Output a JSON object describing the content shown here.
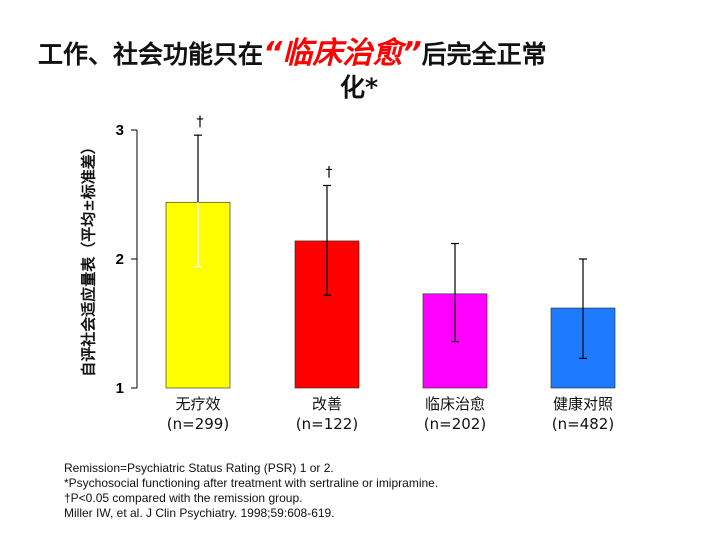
{
  "title": {
    "prefix": "工作、社会功能只在",
    "emphasis": "“临床治愈”",
    "suffix": "后完全正常",
    "line2": "化*"
  },
  "chart_data": {
    "type": "bar",
    "ylabel": "自评社会适应量表（平均±标准差）",
    "ylim": [
      1,
      3
    ],
    "yticks": [
      "1",
      "2",
      "3"
    ],
    "categories": [
      {
        "name": "无疗效",
        "n": "(n=299)"
      },
      {
        "name": "改善",
        "n": "(n=122)"
      },
      {
        "name": "临床治愈",
        "n": "(n=202)"
      },
      {
        "name": "健康对照",
        "n": "(n=482)"
      }
    ],
    "values": [
      2.44,
      2.14,
      1.73,
      1.62
    ],
    "err_upper": [
      2.96,
      2.57,
      2.12,
      2.0
    ],
    "err_lower": [
      1.94,
      1.72,
      1.36,
      1.23
    ],
    "colors": [
      "#ffff00",
      "#ff0000",
      "#ff00ff",
      "#1e7bff"
    ],
    "sig_markers": [
      "†",
      "†",
      "",
      ""
    ]
  },
  "footnotes": [
    "Remission=Psychiatric Status Rating (PSR) 1 or 2.",
    "*Psychosocial functioning after treatment with sertraline or imipramine.",
    "†P<0.05 compared with the remission group.",
    "Miller IW, et al. J Clin Psychiatry. 1998;59:608-619."
  ]
}
